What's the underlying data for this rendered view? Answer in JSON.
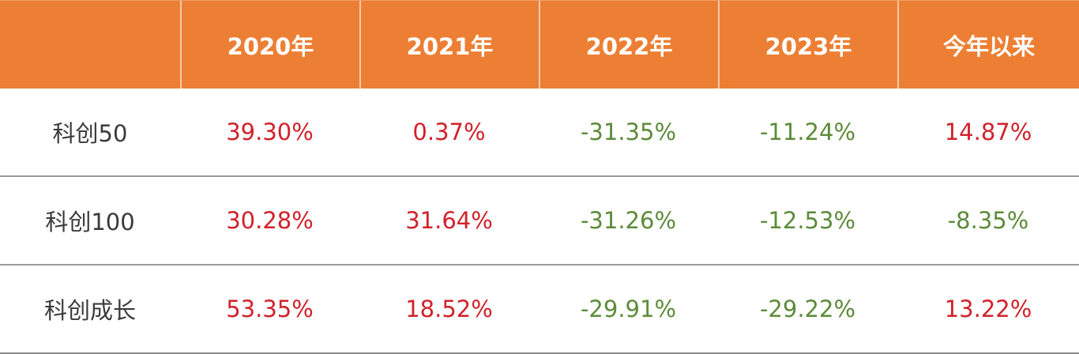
{
  "colors": {
    "header_bg": "#ec7f34",
    "header_text": "#ffffff",
    "positive": "#d0222b",
    "negative": "#5d8b3a",
    "label_text": "#3a3a3a"
  },
  "table": {
    "headers": [
      "",
      "2020年",
      "2021年",
      "2022年",
      "2023年",
      "今年以来"
    ],
    "rows": [
      {
        "label": "科创50",
        "values": [
          "39.30%",
          "0.37%",
          "-31.35%",
          "-11.24%",
          "14.87%"
        ]
      },
      {
        "label": "科创100",
        "values": [
          "30.28%",
          "31.64%",
          "-31.26%",
          "-12.53%",
          "-8.35%"
        ]
      },
      {
        "label": "科创成长",
        "values": [
          "53.35%",
          "18.52%",
          "-29.91%",
          "-29.22%",
          "13.22%"
        ]
      }
    ]
  }
}
